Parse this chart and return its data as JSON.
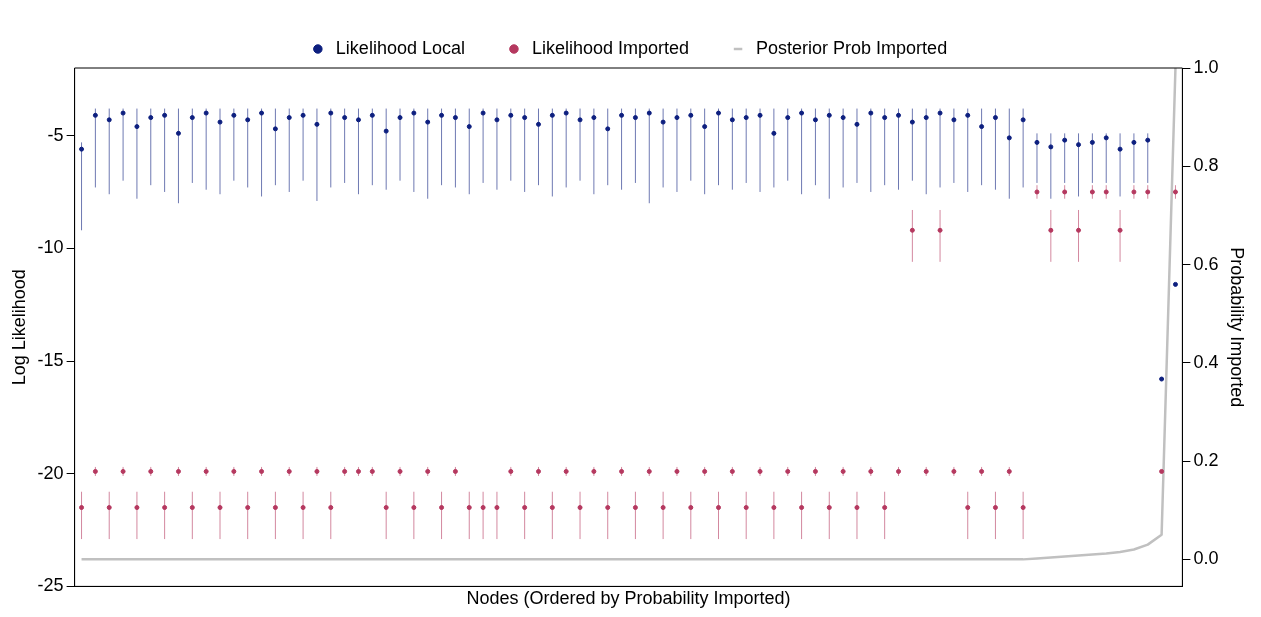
{
  "chart_data": {
    "type": "scatter",
    "xlabel": "Nodes (Ordered by Probability Imported)",
    "ylabel": "Log Likelihood",
    "y2label": "Probability Imported",
    "categories": [
      null,
      null,
      null,
      null,
      null,
      null,
      null,
      null,
      null,
      null,
      null,
      null,
      null,
      null,
      null,
      null,
      null,
      null,
      null,
      null,
      null,
      null,
      null,
      null,
      null,
      null,
      null,
      null,
      null,
      null,
      null,
      null,
      null,
      null,
      null,
      null,
      null,
      null,
      null,
      null,
      null,
      null,
      null,
      null,
      null,
      null,
      null,
      null,
      null,
      null,
      null,
      null,
      null,
      null,
      null,
      null,
      null,
      null,
      null,
      null,
      null,
      null,
      null,
      null,
      null,
      null,
      null,
      null,
      null,
      null,
      null,
      null,
      null,
      null,
      null,
      null,
      null,
      null,
      null,
      null
    ],
    "ylim": [
      -25,
      -2
    ],
    "yticks": [
      -25,
      -20,
      -15,
      -10,
      -5
    ],
    "y2lim": [
      -0.055,
      1.0
    ],
    "y2ticks": [
      {
        "value": 0,
        "label": "0.0"
      },
      0.2,
      0.4,
      0.6,
      0.8,
      {
        "value": 1,
        "label": "1.0"
      }
    ],
    "tick_labels": "y",
    "grid": false,
    "legend": "top",
    "series": [
      {
        "name": "Likelihood Local",
        "marker": "circle",
        "color": "#0d1f7f",
        "values": [
          -5.6,
          -4.1,
          -4.3,
          -4.0,
          -4.6,
          -4.2,
          -4.1,
          -4.9,
          -4.2,
          -4.0,
          -4.4,
          -4.1,
          -4.3,
          -4.0,
          -4.7,
          -4.2,
          -4.1,
          -4.5,
          -4.0,
          -4.2,
          -4.3,
          -4.1,
          -4.8,
          -4.2,
          -4.0,
          -4.4,
          -4.1,
          -4.2,
          -4.6,
          -4.0,
          -4.3,
          -4.1,
          -4.2,
          -4.5,
          -4.1,
          -4.0,
          -4.3,
          -4.2,
          -4.7,
          -4.1,
          -4.2,
          -4.0,
          -4.4,
          -4.2,
          -4.1,
          -4.6,
          -4.0,
          -4.3,
          -4.2,
          -4.1,
          -4.9,
          -4.2,
          -4.0,
          -4.3,
          -4.1,
          -4.2,
          -4.5,
          -4.0,
          -4.2,
          -4.1,
          -4.4,
          -4.2,
          -4.0,
          -4.3,
          -4.1,
          -4.6,
          -4.2,
          -5.1,
          -4.3,
          -5.3,
          -5.5,
          -5.2,
          -5.4,
          -5.3,
          -5.1,
          -5.6,
          -5.3,
          -5.2,
          -15.8,
          -11.6
        ],
        "errors": [
          [
            -9.2,
            -5.3
          ],
          [
            -7.3,
            -3.8
          ],
          [
            -7.6,
            -3.8
          ],
          [
            -7.0,
            -3.8
          ],
          [
            -7.8,
            -3.8
          ],
          [
            -7.2,
            -3.8
          ],
          [
            -7.5,
            -3.8
          ],
          [
            -8.0,
            -3.8
          ],
          [
            -7.1,
            -3.8
          ],
          [
            -7.4,
            -3.8
          ],
          [
            -7.6,
            -3.8
          ],
          [
            -7.0,
            -3.8
          ],
          [
            -7.3,
            -3.8
          ],
          [
            -7.7,
            -3.8
          ],
          [
            -7.2,
            -3.8
          ],
          [
            -7.5,
            -3.8
          ],
          [
            -7.0,
            -3.8
          ],
          [
            -7.9,
            -3.8
          ],
          [
            -7.3,
            -3.8
          ],
          [
            -7.1,
            -3.8
          ],
          [
            -7.6,
            -3.8
          ],
          [
            -7.2,
            -3.8
          ],
          [
            -7.4,
            -3.8
          ],
          [
            -7.0,
            -3.8
          ],
          [
            -7.5,
            -3.8
          ],
          [
            -7.8,
            -3.8
          ],
          [
            -7.2,
            -3.8
          ],
          [
            -7.3,
            -3.8
          ],
          [
            -7.6,
            -3.8
          ],
          [
            -7.1,
            -3.8
          ],
          [
            -7.4,
            -3.8
          ],
          [
            -7.0,
            -3.8
          ],
          [
            -7.5,
            -3.8
          ],
          [
            -7.2,
            -3.8
          ],
          [
            -7.7,
            -3.8
          ],
          [
            -7.3,
            -3.8
          ],
          [
            -7.0,
            -3.8
          ],
          [
            -7.6,
            -3.8
          ],
          [
            -7.2,
            -3.8
          ],
          [
            -7.4,
            -3.8
          ],
          [
            -7.1,
            -3.8
          ],
          [
            -8.0,
            -3.8
          ],
          [
            -7.3,
            -3.8
          ],
          [
            -7.5,
            -3.8
          ],
          [
            -7.0,
            -3.8
          ],
          [
            -7.6,
            -3.8
          ],
          [
            -7.2,
            -3.8
          ],
          [
            -7.4,
            -3.8
          ],
          [
            -7.1,
            -3.8
          ],
          [
            -7.5,
            -3.8
          ],
          [
            -7.3,
            -3.8
          ],
          [
            -7.0,
            -3.8
          ],
          [
            -7.6,
            -3.8
          ],
          [
            -7.2,
            -3.8
          ],
          [
            -7.8,
            -3.8
          ],
          [
            -7.3,
            -3.8
          ],
          [
            -7.1,
            -3.8
          ],
          [
            -7.5,
            -3.8
          ],
          [
            -7.2,
            -3.8
          ],
          [
            -7.4,
            -3.8
          ],
          [
            -7.0,
            -3.8
          ],
          [
            -7.6,
            -3.8
          ],
          [
            -7.3,
            -3.8
          ],
          [
            -7.1,
            -3.8
          ],
          [
            -7.5,
            -3.8
          ],
          [
            -7.2,
            -3.8
          ],
          [
            -7.4,
            -3.8
          ],
          [
            -7.8,
            -3.8
          ],
          [
            -7.3,
            -3.8
          ],
          [
            -7.1,
            -4.9
          ],
          [
            -7.8,
            -4.9
          ],
          [
            -7.1,
            -4.9
          ],
          [
            -7.7,
            -4.9
          ],
          [
            -7.1,
            -4.9
          ],
          [
            -7.1,
            -4.9
          ],
          [
            -7.7,
            -4.9
          ],
          [
            -7.1,
            -4.9
          ],
          [
            -7.1,
            -4.9
          ],
          null,
          null
        ]
      },
      {
        "name": "Likelihood Imported",
        "marker": "circle",
        "color": "#b5385f",
        "values": [
          -21.5,
          -19.9,
          -21.5,
          -19.9,
          -21.5,
          -19.9,
          -21.5,
          -19.9,
          -21.5,
          -19.9,
          -21.5,
          -19.9,
          -21.5,
          -19.9,
          -21.5,
          -19.9,
          -21.5,
          -19.9,
          -21.5,
          -19.9,
          -19.9,
          -19.9,
          -21.5,
          -19.9,
          -21.5,
          -19.9,
          -21.5,
          -19.9,
          -21.5,
          -21.5,
          -21.5,
          -19.9,
          -21.5,
          -19.9,
          -21.5,
          -19.9,
          -21.5,
          -19.9,
          -21.5,
          -19.9,
          -21.5,
          -19.9,
          -21.5,
          -19.9,
          -21.5,
          -19.9,
          -21.5,
          -19.9,
          -21.5,
          -19.9,
          -21.5,
          -19.9,
          -21.5,
          -19.9,
          -21.5,
          -19.9,
          -21.5,
          -19.9,
          -21.5,
          -19.9,
          -9.2,
          -19.9,
          -9.2,
          -19.9,
          -21.5,
          -19.9,
          -21.5,
          -19.9,
          -21.5,
          -7.5,
          -9.2,
          -7.5,
          -9.2,
          -7.5,
          -7.5,
          -9.2,
          -7.5,
          -7.5,
          -19.9,
          -7.5
        ],
        "errors": [
          [
            -22.9,
            -20.8
          ],
          [
            -20.1,
            -19.7
          ],
          [
            -22.9,
            -20.8
          ],
          [
            -20.1,
            -19.7
          ],
          [
            -22.9,
            -20.8
          ],
          [
            -20.1,
            -19.7
          ],
          [
            -22.9,
            -20.8
          ],
          [
            -20.1,
            -19.7
          ],
          [
            -22.9,
            -20.8
          ],
          [
            -20.1,
            -19.7
          ],
          [
            -22.9,
            -20.8
          ],
          [
            -20.1,
            -19.7
          ],
          [
            -22.9,
            -20.8
          ],
          [
            -20.1,
            -19.7
          ],
          [
            -22.9,
            -20.8
          ],
          [
            -20.1,
            -19.7
          ],
          [
            -22.9,
            -20.8
          ],
          [
            -20.1,
            -19.7
          ],
          [
            -22.9,
            -20.8
          ],
          [
            -20.1,
            -19.7
          ],
          [
            -20.1,
            -19.7
          ],
          [
            -20.1,
            -19.7
          ],
          [
            -22.9,
            -20.8
          ],
          [
            -20.1,
            -19.7
          ],
          [
            -22.9,
            -20.8
          ],
          [
            -20.1,
            -19.7
          ],
          [
            -22.9,
            -20.8
          ],
          [
            -20.1,
            -19.7
          ],
          [
            -22.9,
            -20.8
          ],
          [
            -22.9,
            -20.8
          ],
          [
            -22.9,
            -20.8
          ],
          [
            -20.1,
            -19.7
          ],
          [
            -22.9,
            -20.8
          ],
          [
            -20.1,
            -19.7
          ],
          [
            -22.9,
            -20.8
          ],
          [
            -20.1,
            -19.7
          ],
          [
            -22.9,
            -20.8
          ],
          [
            -20.1,
            -19.7
          ],
          [
            -22.9,
            -20.8
          ],
          [
            -20.1,
            -19.7
          ],
          [
            -22.9,
            -20.8
          ],
          [
            -20.1,
            -19.7
          ],
          [
            -22.9,
            -20.8
          ],
          [
            -20.1,
            -19.7
          ],
          [
            -22.9,
            -20.8
          ],
          [
            -20.1,
            -19.7
          ],
          [
            -22.9,
            -20.8
          ],
          [
            -20.1,
            -19.7
          ],
          [
            -22.9,
            -20.8
          ],
          [
            -20.1,
            -19.7
          ],
          [
            -22.9,
            -20.8
          ],
          [
            -20.1,
            -19.7
          ],
          [
            -22.9,
            -20.8
          ],
          [
            -20.1,
            -19.7
          ],
          [
            -22.9,
            -20.8
          ],
          [
            -20.1,
            -19.7
          ],
          [
            -22.9,
            -20.8
          ],
          [
            -20.1,
            -19.7
          ],
          [
            -22.9,
            -20.8
          ],
          [
            -20.1,
            -19.7
          ],
          [
            -10.6,
            -8.3
          ],
          [
            -20.1,
            -19.7
          ],
          [
            -10.6,
            -8.3
          ],
          [
            -20.1,
            -19.7
          ],
          [
            -22.9,
            -20.8
          ],
          [
            -20.1,
            -19.7
          ],
          [
            -22.9,
            -20.8
          ],
          [
            -20.1,
            -19.7
          ],
          [
            -22.9,
            -20.8
          ],
          [
            -7.8,
            -7.2
          ],
          [
            -10.6,
            -8.3
          ],
          [
            -7.8,
            -7.2
          ],
          [
            -10.6,
            -8.3
          ],
          [
            -7.8,
            -7.2
          ],
          [
            -7.8,
            -7.2
          ],
          [
            -10.6,
            -8.3
          ],
          [
            -7.8,
            -7.2
          ],
          [
            -7.8,
            -7.2
          ],
          null,
          [
            -7.8,
            -7.2
          ]
        ]
      },
      {
        "name": "Posterior Prob Imported",
        "type": "line",
        "marker": "none",
        "axis": "y2",
        "color": "#c0c0c0",
        "values": [
          0,
          0,
          0,
          0,
          0,
          0,
          0,
          0,
          0,
          0,
          0,
          0,
          0,
          0,
          0,
          0,
          0,
          0,
          0,
          0,
          0,
          0,
          0,
          0,
          0,
          0,
          0,
          0,
          0,
          0,
          0,
          0,
          0,
          0,
          0,
          0,
          0,
          0,
          0,
          0,
          0,
          0,
          0,
          0,
          0,
          0,
          0,
          0,
          0,
          0,
          0,
          0,
          0,
          0,
          0,
          0,
          0,
          0,
          0,
          0,
          0,
          0,
          0,
          0,
          0,
          0,
          0,
          0,
          0,
          0.002,
          0.004,
          0.006,
          0.008,
          0.01,
          0.012,
          0.015,
          0.02,
          0.03,
          0.05,
          1.0
        ]
      }
    ]
  }
}
